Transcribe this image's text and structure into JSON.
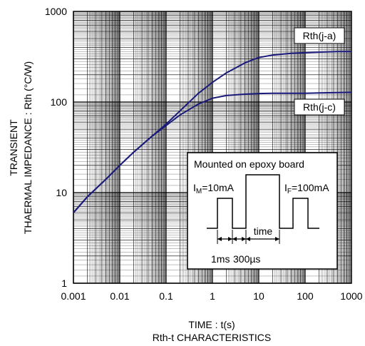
{
  "chart_data": {
    "type": "line",
    "title": "Rth-t CHARACTERISTICS",
    "xlabel": "TIME : t(s)",
    "ylabel_line1": "TRANSIENT",
    "ylabel_line2": "THAERMAL IMPEDANCE : Rth (°C/W)",
    "x_scale": "log",
    "y_scale": "log",
    "xlim": [
      0.001,
      1000
    ],
    "ylim": [
      1,
      1000
    ],
    "x_ticks": [
      "0.001",
      "0.01",
      "0.1",
      "1",
      "10",
      "100",
      "1000"
    ],
    "y_ticks": [
      "1",
      "10",
      "100",
      "1000"
    ],
    "grid": true,
    "series": [
      {
        "name": "Rth(j-a)",
        "color": "#1a1a7a",
        "x": [
          0.001,
          0.002,
          0.005,
          0.01,
          0.02,
          0.05,
          0.1,
          0.2,
          0.5,
          1,
          2,
          5,
          10,
          20,
          50,
          100,
          200,
          500,
          1000
        ],
        "y": [
          6,
          9,
          14,
          20,
          28,
          42,
          57,
          80,
          125,
          165,
          210,
          270,
          310,
          330,
          345,
          350,
          355,
          360,
          360
        ]
      },
      {
        "name": "Rth(j-c)",
        "color": "#1a1a7a",
        "x": [
          0.001,
          0.002,
          0.005,
          0.01,
          0.02,
          0.05,
          0.1,
          0.2,
          0.5,
          1,
          2,
          5,
          10,
          20,
          50,
          100,
          200,
          500,
          1000
        ],
        "y": [
          6,
          9,
          14,
          20,
          28,
          42,
          55,
          72,
          95,
          110,
          118,
          122,
          124,
          125,
          125,
          125,
          126,
          127,
          128
        ]
      }
    ],
    "inset": {
      "heading": "Mounted on epoxy board",
      "im_label": "I",
      "im_sub": "M",
      "im_value": "=10mA",
      "if_label": "I",
      "if_sub": "F",
      "if_value": "=100mA",
      "time_label": "time",
      "ms_label": "1ms",
      "us_label": "300µs"
    }
  }
}
